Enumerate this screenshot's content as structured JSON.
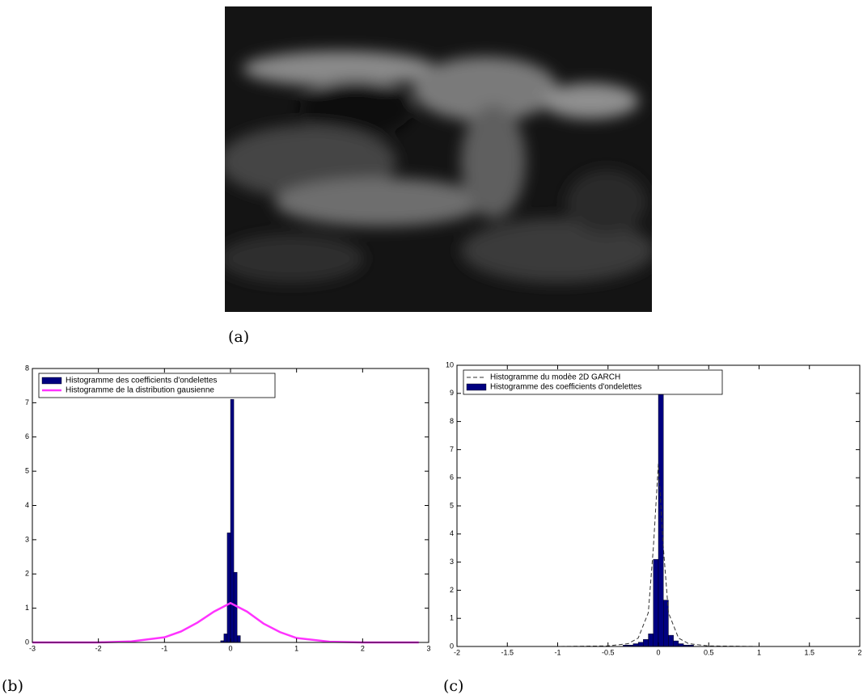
{
  "figure": {
    "captions": [
      "(a)",
      "(b)",
      "(c)"
    ]
  },
  "chart_data": [
    {
      "type": "histogram",
      "xlim": [
        -3,
        3
      ],
      "xticks": [
        -3,
        -2,
        -1,
        0,
        1,
        2,
        3
      ],
      "ylim": [
        0,
        8
      ],
      "yticks": [
        0,
        1,
        2,
        3,
        4,
        5,
        6,
        7,
        8
      ],
      "grid": false,
      "legend": "upper left",
      "series": [
        {
          "name": "Histogramme des coefficients d'ondelettes",
          "color": "#000080",
          "type": "histogram",
          "bins": [
            -0.15,
            -0.1,
            -0.05,
            0,
            0.05,
            0.1,
            0.15
          ],
          "values": [
            0.05,
            0.25,
            3.2,
            7.1,
            2.05,
            0.2
          ]
        },
        {
          "name": "Histogramme de la distribution gausienne",
          "color": "#ff33ff",
          "type": "line",
          "linestyle": "solid",
          "x": [
            -3,
            -2,
            -1.5,
            -1,
            -0.75,
            -0.5,
            -0.25,
            0,
            0.25,
            0.5,
            0.75,
            1,
            1.5,
            2,
            2.85
          ],
          "values": [
            0,
            0,
            0.03,
            0.15,
            0.32,
            0.58,
            0.9,
            1.15,
            0.9,
            0.55,
            0.3,
            0.13,
            0.02,
            0,
            0
          ]
        }
      ]
    },
    {
      "type": "histogram",
      "xlim": [
        -2,
        2
      ],
      "xticks": [
        -2,
        -1.5,
        -1,
        -0.5,
        0,
        0.5,
        1,
        1.5,
        2
      ],
      "ylim": [
        0,
        10
      ],
      "yticks": [
        0,
        1,
        2,
        3,
        4,
        5,
        6,
        7,
        8,
        9,
        10
      ],
      "grid": false,
      "legend": "upper left",
      "series": [
        {
          "name": "Histogramme du modèe 2D GARCH",
          "color": "#333333",
          "type": "line",
          "linestyle": "dashed",
          "x": [
            -2,
            -1,
            -0.5,
            -0.3,
            -0.2,
            -0.1,
            -0.05,
            0,
            0.05,
            0.1,
            0.2,
            0.3,
            0.5,
            1,
            2
          ],
          "values": [
            0,
            0,
            0.02,
            0.1,
            0.3,
            1.2,
            3.5,
            6.5,
            3.5,
            1.2,
            0.3,
            0.1,
            0.02,
            0,
            0
          ]
        },
        {
          "name": "Histogramme des coefficients d'ondelettes",
          "color": "#000080",
          "type": "histogram",
          "bins": [
            -0.35,
            -0.3,
            -0.25,
            -0.2,
            -0.15,
            -0.1,
            -0.05,
            0,
            0.05,
            0.1,
            0.15,
            0.2,
            0.25,
            0.3,
            0.35
          ],
          "values": [
            0.05,
            0.05,
            0.1,
            0.15,
            0.25,
            0.45,
            3.1,
            9.0,
            1.65,
            0.4,
            0.2,
            0.1,
            0.05,
            0.05
          ]
        }
      ]
    }
  ]
}
